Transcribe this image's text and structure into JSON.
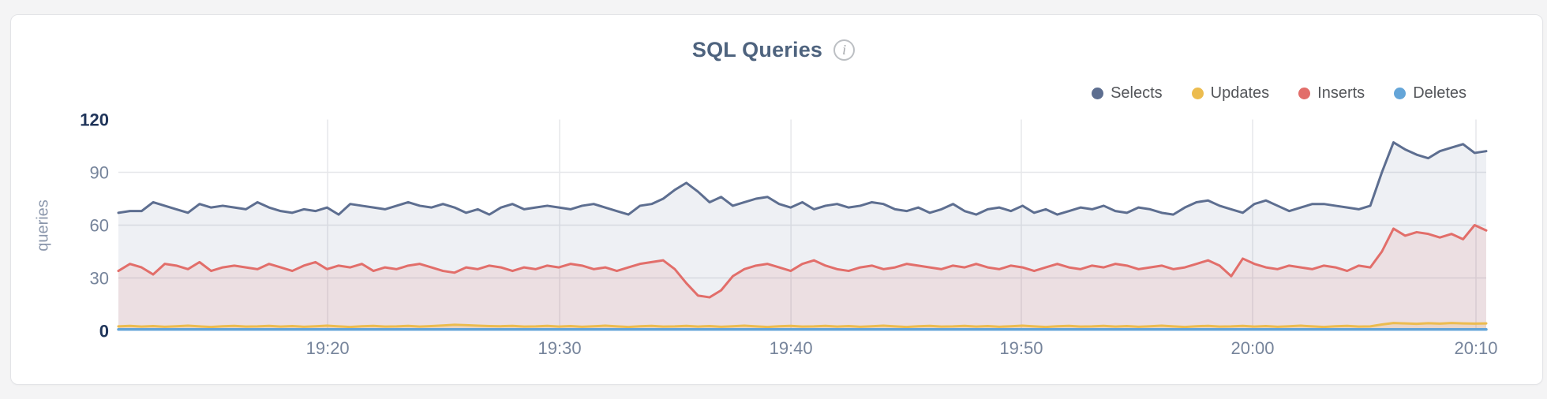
{
  "card": {
    "title": "SQL Queries",
    "info_icon": "i"
  },
  "chart_data": {
    "type": "area",
    "title": "SQL Queries",
    "xlabel": "",
    "ylabel": "queries",
    "ylim": [
      0,
      120
    ],
    "grid": "horizontal lines at 30/60/90, vertical lines at 10-minute ticks",
    "legend_position": "top-right",
    "legend_order": [
      "Selects",
      "Updates",
      "Inserts",
      "Deletes"
    ],
    "x_start": "19:11",
    "x_end": "20:10",
    "point_interval_seconds": 30,
    "y_ticks": [
      {
        "value": "120",
        "v": 120,
        "major": true,
        "gridline": false
      },
      {
        "value": "90",
        "v": 90,
        "major": false,
        "gridline": true
      },
      {
        "value": "60",
        "v": 60,
        "major": false,
        "gridline": true
      },
      {
        "value": "30",
        "v": 30,
        "major": false,
        "gridline": true
      },
      {
        "value": "0",
        "v": 0,
        "major": true,
        "gridline": false
      }
    ],
    "x_ticks": [
      {
        "label": "19:20",
        "pos": 0.153
      },
      {
        "label": "19:30",
        "pos": 0.3226
      },
      {
        "label": "19:40",
        "pos": 0.4917
      },
      {
        "label": "19:50",
        "pos": 0.6601
      },
      {
        "label": "20:00",
        "pos": 0.8292
      },
      {
        "label": "20:10",
        "pos": 0.9925
      }
    ],
    "series": [
      {
        "name": "Selects",
        "color": "#5d6e90",
        "fill_opacity": 0.1,
        "line_width": 3,
        "values": [
          67,
          68,
          68,
          73,
          71,
          69,
          67,
          72,
          70,
          71,
          70,
          69,
          73,
          70,
          68,
          67,
          69,
          68,
          70,
          66,
          72,
          71,
          70,
          69,
          71,
          73,
          71,
          70,
          72,
          70,
          67,
          69,
          66,
          70,
          72,
          69,
          70,
          71,
          70,
          69,
          71,
          72,
          70,
          68,
          66,
          71,
          72,
          75,
          80,
          84,
          79,
          73,
          76,
          71,
          73,
          75,
          76,
          72,
          70,
          73,
          69,
          71,
          72,
          70,
          71,
          73,
          72,
          69,
          68,
          70,
          67,
          69,
          72,
          68,
          66,
          69,
          70,
          68,
          71,
          67,
          69,
          66,
          68,
          70,
          69,
          71,
          68,
          67,
          70,
          69,
          67,
          66,
          70,
          73,
          74,
          71,
          69,
          67,
          72,
          74,
          71,
          68,
          70,
          72,
          72,
          71,
          70,
          69,
          71,
          90,
          107,
          103,
          100,
          98,
          102,
          104,
          106,
          101,
          102
        ]
      },
      {
        "name": "Updates",
        "color": "#ecbc4f",
        "fill_opacity": 0.2,
        "line_width": 3,
        "values": [
          2.5,
          2.8,
          2.4,
          2.7,
          2.3,
          2.6,
          2.9,
          2.5,
          2.2,
          2.6,
          2.8,
          2.4,
          2.5,
          2.8,
          2.4,
          2.7,
          2.3,
          2.6,
          2.9,
          2.5,
          2.2,
          2.6,
          2.8,
          2.4,
          2.5,
          2.8,
          2.4,
          2.7,
          3.0,
          3.4,
          3.2,
          2.9,
          2.7,
          2.6,
          2.8,
          2.4,
          2.5,
          2.8,
          2.4,
          2.7,
          2.3,
          2.6,
          2.9,
          2.5,
          2.2,
          2.6,
          2.8,
          2.4,
          2.5,
          2.8,
          2.4,
          2.7,
          2.3,
          2.6,
          2.9,
          2.5,
          2.2,
          2.6,
          2.8,
          2.4,
          2.5,
          2.8,
          2.4,
          2.7,
          2.3,
          2.6,
          2.9,
          2.5,
          2.2,
          2.6,
          2.8,
          2.4,
          2.5,
          2.8,
          2.4,
          2.7,
          2.3,
          2.6,
          2.9,
          2.5,
          2.2,
          2.6,
          2.8,
          2.4,
          2.5,
          2.8,
          2.4,
          2.7,
          2.3,
          2.6,
          2.9,
          2.5,
          2.2,
          2.6,
          2.8,
          2.4,
          2.5,
          2.8,
          2.4,
          2.7,
          2.3,
          2.6,
          2.9,
          2.5,
          2.2,
          2.6,
          2.8,
          2.4,
          2.5,
          3.6,
          4.4,
          4.2,
          4.0,
          4.3,
          4.1,
          4.4,
          4.2,
          4.1,
          4.2
        ]
      },
      {
        "name": "Inserts",
        "color": "#e26e6a",
        "fill_opacity": 0.13,
        "line_width": 3,
        "values": [
          34,
          38,
          36,
          32,
          38,
          37,
          35,
          39,
          34,
          36,
          37,
          36,
          35,
          38,
          36,
          34,
          37,
          39,
          35,
          37,
          36,
          38,
          34,
          36,
          35,
          37,
          38,
          36,
          34,
          33,
          36,
          35,
          37,
          36,
          34,
          36,
          35,
          37,
          36,
          38,
          37,
          35,
          36,
          34,
          36,
          38,
          39,
          40,
          35,
          27,
          20,
          19,
          23,
          31,
          35,
          37,
          38,
          36,
          34,
          38,
          40,
          37,
          35,
          34,
          36,
          37,
          35,
          36,
          38,
          37,
          36,
          35,
          37,
          36,
          38,
          36,
          35,
          37,
          36,
          34,
          36,
          38,
          36,
          35,
          37,
          36,
          38,
          37,
          35,
          36,
          37,
          35,
          36,
          38,
          40,
          37,
          31,
          41,
          38,
          36,
          35,
          37,
          36,
          35,
          37,
          36,
          34,
          37,
          36,
          45,
          58,
          54,
          56,
          55,
          53,
          55,
          52,
          60,
          57
        ]
      },
      {
        "name": "Deletes",
        "color": "#64a5d8",
        "fill_opacity": 0.15,
        "line_width": 3.5,
        "values": [
          0.8,
          0.8,
          0.8,
          0.8,
          0.8,
          0.8,
          0.8,
          0.8,
          0.8,
          0.8,
          0.8,
          0.8,
          0.8,
          0.8,
          0.8,
          0.8,
          0.8,
          0.8,
          0.8,
          0.8,
          0.8,
          0.8,
          0.8,
          0.8,
          0.8,
          0.8,
          0.8,
          0.8,
          0.8,
          0.8,
          0.8,
          0.8,
          0.8,
          0.8,
          0.8,
          0.8,
          0.8,
          0.8,
          0.8,
          0.8,
          0.8,
          0.8,
          0.8,
          0.8,
          0.8,
          0.8,
          0.8,
          0.8,
          0.8,
          0.8,
          0.8,
          0.8,
          0.8,
          0.8,
          0.8,
          0.8,
          0.8,
          0.8,
          0.8,
          0.8,
          0.8,
          0.8,
          0.8,
          0.8,
          0.8,
          0.8,
          0.8,
          0.8,
          0.8,
          0.8,
          0.8,
          0.8,
          0.8,
          0.8,
          0.8,
          0.8,
          0.8,
          0.8,
          0.8,
          0.8,
          0.8,
          0.8,
          0.8,
          0.8,
          0.8,
          0.8,
          0.8,
          0.8,
          0.8,
          0.8,
          0.8,
          0.8,
          0.8,
          0.8,
          0.8,
          0.8,
          0.8,
          0.8,
          0.8,
          0.8,
          0.8,
          0.8,
          0.8,
          0.8,
          0.8,
          0.8,
          0.8,
          0.8,
          0.8,
          0.8,
          0.8,
          0.8,
          0.8,
          0.8,
          0.8,
          0.8,
          0.8,
          0.8,
          0.8
        ]
      }
    ]
  }
}
